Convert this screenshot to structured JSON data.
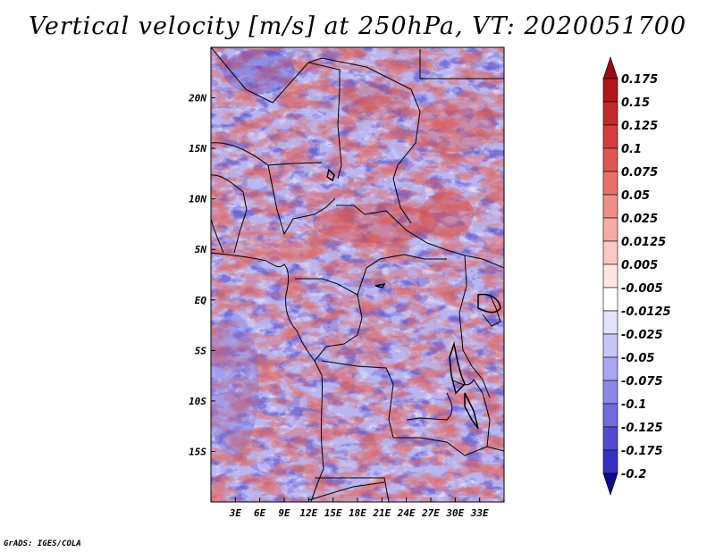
{
  "title": "Vertical velocity [m/s] at 250hPa, VT: 2020051700",
  "credit": "GrADS: IGES/COLA",
  "map": {
    "lat_range": [
      -20,
      25
    ],
    "lon_range": [
      0,
      36
    ],
    "lat_ticks": [
      {
        "value": 20,
        "label": "20N"
      },
      {
        "value": 15,
        "label": "15N"
      },
      {
        "value": 10,
        "label": "10N"
      },
      {
        "value": 5,
        "label": "5N"
      },
      {
        "value": 0,
        "label": "EQ"
      },
      {
        "value": -5,
        "label": "5S"
      },
      {
        "value": -10,
        "label": "10S"
      },
      {
        "value": -15,
        "label": "15S"
      }
    ],
    "lon_ticks": [
      {
        "value": 3,
        "label": "3E"
      },
      {
        "value": 6,
        "label": "6E"
      },
      {
        "value": 9,
        "label": "9E"
      },
      {
        "value": 12,
        "label": "12E"
      },
      {
        "value": 15,
        "label": "15E"
      },
      {
        "value": 18,
        "label": "18E"
      },
      {
        "value": 21,
        "label": "21E"
      },
      {
        "value": 24,
        "label": "24E"
      },
      {
        "value": 27,
        "label": "27E"
      },
      {
        "value": 30,
        "label": "30E"
      },
      {
        "value": 33,
        "label": "33E"
      }
    ]
  },
  "colorbar": {
    "levels": [
      {
        "label": "0.175",
        "color": "#b0161a"
      },
      {
        "label": "0.15",
        "color": "#c42a2c"
      },
      {
        "label": "0.125",
        "color": "#d43f3d"
      },
      {
        "label": "0.1",
        "color": "#de5852"
      },
      {
        "label": "0.075",
        "color": "#e6736a"
      },
      {
        "label": "0.05",
        "color": "#ee9088"
      },
      {
        "label": "0.025",
        "color": "#f4aca5"
      },
      {
        "label": "0.0125",
        "color": "#f9cac4"
      },
      {
        "label": "0.005",
        "color": "#fde6e2"
      },
      {
        "label": "-0.005",
        "color": "#ffffff"
      },
      {
        "label": "-0.0125",
        "color": "#e2e2fc"
      },
      {
        "label": "-0.025",
        "color": "#c6c5f6"
      },
      {
        "label": "-0.05",
        "color": "#a9a7ef"
      },
      {
        "label": "-0.075",
        "color": "#8c89e6"
      },
      {
        "label": "-0.1",
        "color": "#6f6bdc"
      },
      {
        "label": "-0.125",
        "color": "#524dd0"
      },
      {
        "label": "-0.175",
        "color": "#3530c0"
      },
      {
        "label": "-0.2",
        "color": "#1d16a8"
      }
    ],
    "top_color": "#9a0d14",
    "bottom_color": "#0f0b8c"
  }
}
